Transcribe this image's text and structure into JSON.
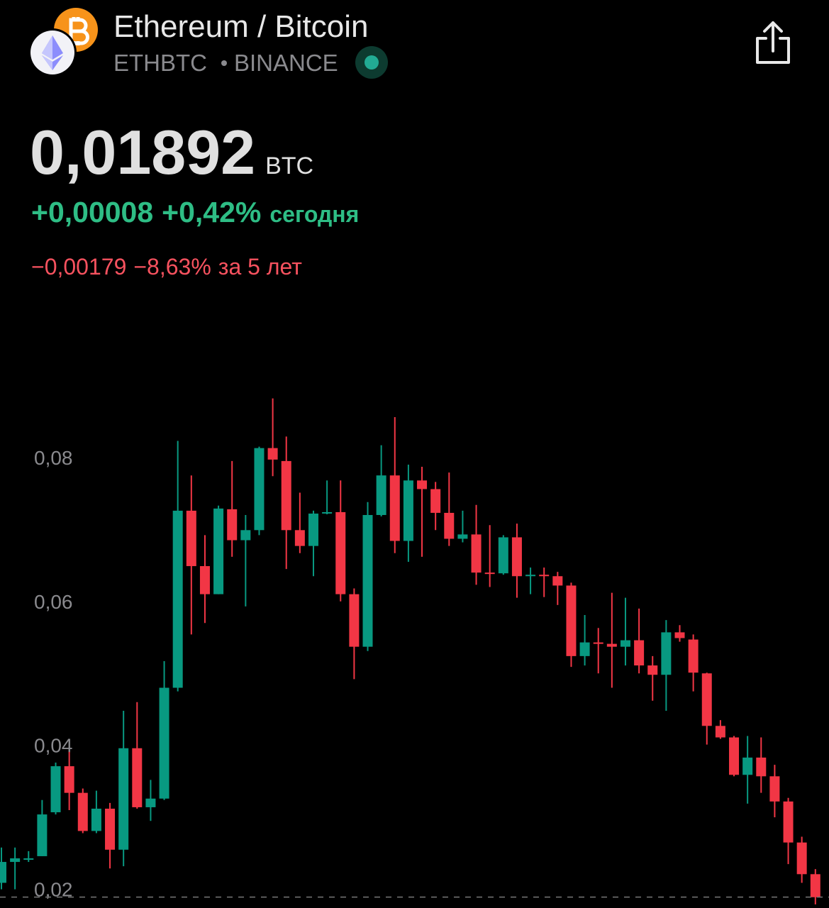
{
  "header": {
    "title": "Ethereum / Bitcoin",
    "symbol": "ETHBTC",
    "exchange": "BINANCE",
    "price": "0,01892",
    "currency": "BTC",
    "change_today": "+0,00008",
    "change_today_pct": "+0,42%",
    "today_label": "сегодня",
    "change_5y": "−0,00179",
    "change_5y_pct": "−8,63%",
    "period_5y_label": "за 5 лет"
  },
  "chart_data": {
    "type": "candlestick",
    "up_color": "#089981",
    "down_color": "#f23645",
    "ylim": [
      0.0174,
      0.0925
    ],
    "yticks": [
      {
        "value": 0.02,
        "label": "0,02"
      },
      {
        "value": 0.04,
        "label": "0,04"
      },
      {
        "value": 0.06,
        "label": "0,06"
      },
      {
        "value": 0.08,
        "label": "0,08"
      }
    ],
    "price_line": 0.01892,
    "open": [
      0.0209,
      0.0238,
      0.0243,
      0.0246,
      0.0307,
      0.0371,
      0.0334,
      0.0281,
      0.0312,
      0.0255,
      0.0396,
      0.0314,
      0.0326,
      0.048,
      0.0726,
      0.0649,
      0.061,
      0.0728,
      0.0685,
      0.0699,
      0.0813,
      0.0795,
      0.0699,
      0.0677,
      0.0722,
      0.0724,
      0.061,
      0.0537,
      0.072,
      0.0775,
      0.0684,
      0.0768,
      0.0756,
      0.0723,
      0.0687,
      0.0693,
      0.064,
      0.0639,
      0.0689,
      0.0635,
      0.0637,
      0.0635,
      0.0622,
      0.0524,
      0.0543,
      0.0541,
      0.0537,
      0.0546,
      0.0511,
      0.0498,
      0.0557,
      0.0547,
      0.05,
      0.0427,
      0.0411,
      0.0359,
      0.0383,
      0.0357,
      0.0322,
      0.0265,
      0.0221
    ],
    "high": [
      0.0258,
      0.0258,
      0.0253,
      0.0324,
      0.0376,
      0.0391,
      0.034,
      0.0337,
      0.032,
      0.0448,
      0.046,
      0.0352,
      0.0517,
      0.0823,
      0.0775,
      0.0692,
      0.0733,
      0.0795,
      0.072,
      0.0815,
      0.0882,
      0.0829,
      0.0751,
      0.0726,
      0.0768,
      0.0768,
      0.0618,
      0.0738,
      0.0817,
      0.0856,
      0.079,
      0.0787,
      0.0766,
      0.0779,
      0.0726,
      0.0734,
      0.0706,
      0.0692,
      0.0708,
      0.0647,
      0.0647,
      0.0641,
      0.0626,
      0.0581,
      0.0563,
      0.0612,
      0.0605,
      0.059,
      0.0524,
      0.0574,
      0.0567,
      0.0554,
      0.0501,
      0.0435,
      0.0413,
      0.0413,
      0.0411,
      0.0373,
      0.0327,
      0.0273,
      0.0228
    ],
    "low": [
      0.02,
      0.02,
      0.0238,
      0.0246,
      0.0304,
      0.031,
      0.0278,
      0.0278,
      0.0229,
      0.0232,
      0.0312,
      0.0295,
      0.0324,
      0.0475,
      0.0554,
      0.057,
      0.061,
      0.0662,
      0.0593,
      0.0692,
      0.0774,
      0.0645,
      0.0667,
      0.0635,
      0.0721,
      0.06,
      0.0492,
      0.0531,
      0.0718,
      0.0667,
      0.0655,
      0.0662,
      0.0699,
      0.0677,
      0.0682,
      0.0623,
      0.062,
      0.0637,
      0.0605,
      0.061,
      0.0606,
      0.0595,
      0.0509,
      0.0511,
      0.05,
      0.048,
      0.0511,
      0.05,
      0.0462,
      0.0448,
      0.0544,
      0.0475,
      0.0401,
      0.0409,
      0.0357,
      0.0319,
      0.0334,
      0.03,
      0.0235,
      0.0209,
      0.0179
    ],
    "close": [
      0.0238,
      0.0243,
      0.0243,
      0.0304,
      0.0371,
      0.0334,
      0.0281,
      0.0312,
      0.0255,
      0.0396,
      0.0314,
      0.0326,
      0.048,
      0.0726,
      0.0649,
      0.061,
      0.0729,
      0.0685,
      0.0699,
      0.0813,
      0.0797,
      0.0699,
      0.0677,
      0.0722,
      0.0724,
      0.061,
      0.0537,
      0.072,
      0.0775,
      0.0684,
      0.0768,
      0.0756,
      0.0723,
      0.0687,
      0.0693,
      0.064,
      0.0639,
      0.0689,
      0.0635,
      0.0637,
      0.0635,
      0.0622,
      0.0524,
      0.0543,
      0.0541,
      0.0537,
      0.0546,
      0.0511,
      0.0498,
      0.0557,
      0.0549,
      0.0501,
      0.0427,
      0.0411,
      0.0359,
      0.0383,
      0.0357,
      0.0322,
      0.0265,
      0.0221,
      0.0189
    ]
  }
}
